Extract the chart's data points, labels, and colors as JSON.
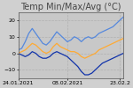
{
  "title": "Temp Min/Max/Avg (°C)",
  "xlabel_ticks": [
    "24.01.2021",
    "08.02.2021",
    "23.02.2"
  ],
  "ylim": [
    -15,
    25
  ],
  "yticks": [
    -10,
    0,
    10,
    20
  ],
  "background_color": "#d0d0d0",
  "plot_bg_color": "#c8c8c8",
  "grid_color": "#b0b0b0",
  "color_max": "#5588dd",
  "color_min": "#1133aa",
  "color_avg": "#ffaa33",
  "title_fontsize": 7.0,
  "tick_fontsize": 4.5,
  "n_points": 31,
  "max_vals": [
    2,
    3,
    7,
    12,
    15,
    12,
    9,
    6,
    5,
    7,
    10,
    13,
    11,
    9,
    7,
    8,
    10,
    9,
    7,
    9,
    10,
    9,
    10,
    12,
    13,
    14,
    15,
    16,
    18,
    20,
    22
  ],
  "min_vals": [
    0,
    -1,
    -2,
    -1,
    1,
    0,
    -2,
    -3,
    -3,
    -2,
    0,
    1,
    0,
    -1,
    -2,
    -4,
    -6,
    -8,
    -11,
    -13,
    -13,
    -12,
    -10,
    -8,
    -6,
    -5,
    -4,
    -3,
    -2,
    -1,
    0
  ],
  "avg_vals": [
    0,
    1,
    2,
    4,
    6,
    5,
    3,
    1,
    0,
    1,
    4,
    6,
    4,
    3,
    2,
    1,
    1,
    0,
    -2,
    -3,
    -2,
    -1,
    0,
    2,
    3,
    4,
    5,
    6,
    7,
    8,
    9
  ]
}
